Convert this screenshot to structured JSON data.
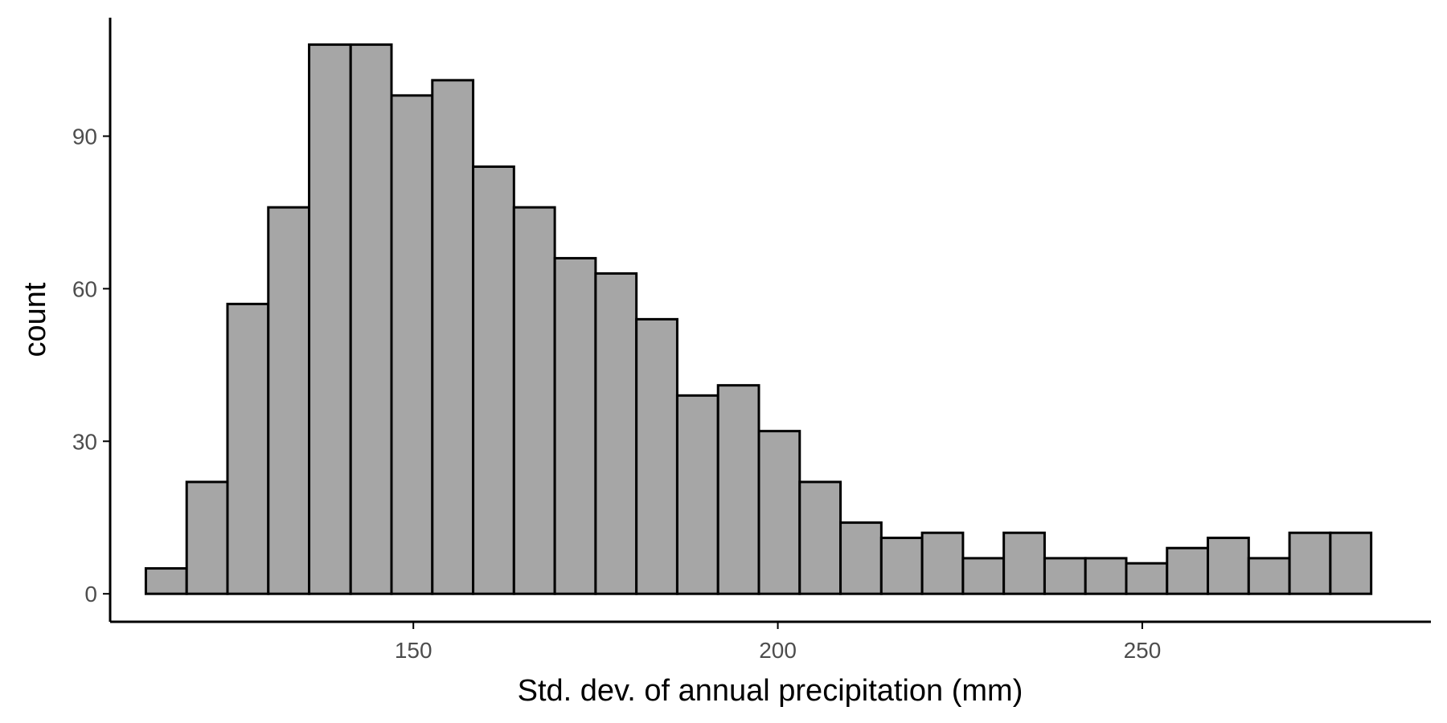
{
  "chart_data": {
    "type": "bar",
    "xlabel": "Std. dev. of annual precipitation (mm)",
    "ylabel": "count",
    "xlim": [
      108.4,
      289.6
    ],
    "ylim": [
      -5.5,
      113.3
    ],
    "x_ticks": [
      150,
      200,
      250
    ],
    "y_ticks": [
      0,
      30,
      60,
      90
    ],
    "grid": false,
    "legend": "none",
    "bar_fill": "#a6a6a6",
    "bar_outline": "#000000",
    "bins": [
      {
        "x0": 113.3,
        "x1": 118.9,
        "count": 5
      },
      {
        "x0": 118.9,
        "x1": 124.5,
        "count": 22
      },
      {
        "x0": 124.5,
        "x1": 130.1,
        "count": 57
      },
      {
        "x0": 130.1,
        "x1": 135.7,
        "count": 76
      },
      {
        "x0": 135.7,
        "x1": 141.4,
        "count": 108
      },
      {
        "x0": 141.4,
        "x1": 147.0,
        "count": 108
      },
      {
        "x0": 147.0,
        "x1": 152.6,
        "count": 98
      },
      {
        "x0": 152.6,
        "x1": 158.2,
        "count": 101
      },
      {
        "x0": 158.2,
        "x1": 163.8,
        "count": 84
      },
      {
        "x0": 163.8,
        "x1": 169.4,
        "count": 76
      },
      {
        "x0": 169.4,
        "x1": 175.0,
        "count": 66
      },
      {
        "x0": 175.0,
        "x1": 180.6,
        "count": 63
      },
      {
        "x0": 180.6,
        "x1": 186.2,
        "count": 54
      },
      {
        "x0": 186.2,
        "x1": 191.8,
        "count": 39
      },
      {
        "x0": 191.8,
        "x1": 197.4,
        "count": 41
      },
      {
        "x0": 197.4,
        "x1": 203.0,
        "count": 32
      },
      {
        "x0": 203.0,
        "x1": 208.6,
        "count": 22
      },
      {
        "x0": 208.6,
        "x1": 214.2,
        "count": 14
      },
      {
        "x0": 214.2,
        "x1": 219.8,
        "count": 11
      },
      {
        "x0": 219.8,
        "x1": 225.4,
        "count": 12
      },
      {
        "x0": 225.4,
        "x1": 231.0,
        "count": 7
      },
      {
        "x0": 231.0,
        "x1": 236.6,
        "count": 12
      },
      {
        "x0": 236.6,
        "x1": 242.2,
        "count": 7
      },
      {
        "x0": 242.2,
        "x1": 247.8,
        "count": 7
      },
      {
        "x0": 247.8,
        "x1": 253.4,
        "count": 6
      },
      {
        "x0": 253.4,
        "x1": 259.0,
        "count": 9
      },
      {
        "x0": 259.0,
        "x1": 264.6,
        "count": 11
      },
      {
        "x0": 264.6,
        "x1": 270.2,
        "count": 7
      },
      {
        "x0": 270.2,
        "x1": 275.8,
        "count": 12
      },
      {
        "x0": 275.8,
        "x1": 281.4,
        "count": 12
      }
    ]
  }
}
